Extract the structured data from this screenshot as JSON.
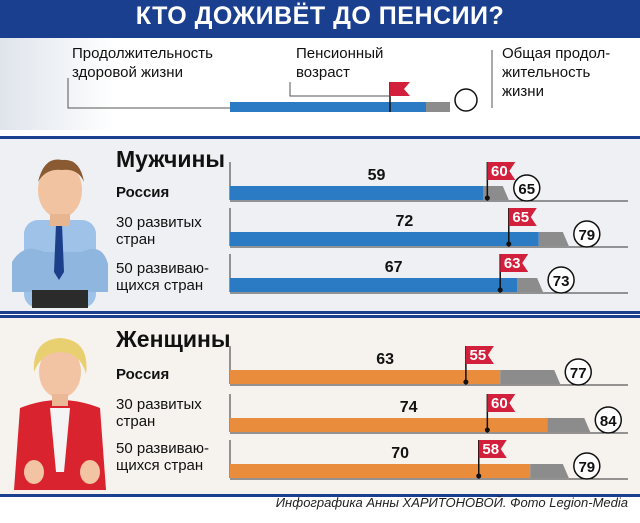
{
  "title": "КТО ДОЖИВЁТ ДО ПЕНСИИ?",
  "legend": {
    "healthy": "Продолжительность\nздоровой жизни",
    "pension": "Пенсионный\nвозраст",
    "total": "Общая продол-\nжительность\nжизни"
  },
  "credit": "Инфографика Анны ХАРИТОНОВОЙ. Фото Legion-Media",
  "colors": {
    "men_bar": "#2a7bc4",
    "women_bar": "#e98d3c",
    "gap": "#8c8c8c",
    "flag": "#d21f3c",
    "banner": "#1b3f8f"
  },
  "chart_data": {
    "type": "bar",
    "xlim": [
      0,
      90
    ],
    "sections": [
      {
        "name": "Мужчины",
        "rows": [
          {
            "label": "Россия",
            "healthy": 59,
            "pension": 60,
            "total": 65
          },
          {
            "label": "30 развитых\nстран",
            "healthy": 72,
            "pension": 65,
            "total": 79
          },
          {
            "label": "50 развиваю-\nщихся стран",
            "healthy": 67,
            "pension": 63,
            "total": 73
          }
        ]
      },
      {
        "name": "Женщины",
        "rows": [
          {
            "label": "Россия",
            "healthy": 63,
            "pension": 55,
            "total": 77
          },
          {
            "label": "30 развитых\nстран",
            "healthy": 74,
            "pension": 60,
            "total": 84
          },
          {
            "label": "50 развиваю-\nщихся стран",
            "healthy": 70,
            "pension": 58,
            "total": 79
          }
        ]
      }
    ]
  }
}
